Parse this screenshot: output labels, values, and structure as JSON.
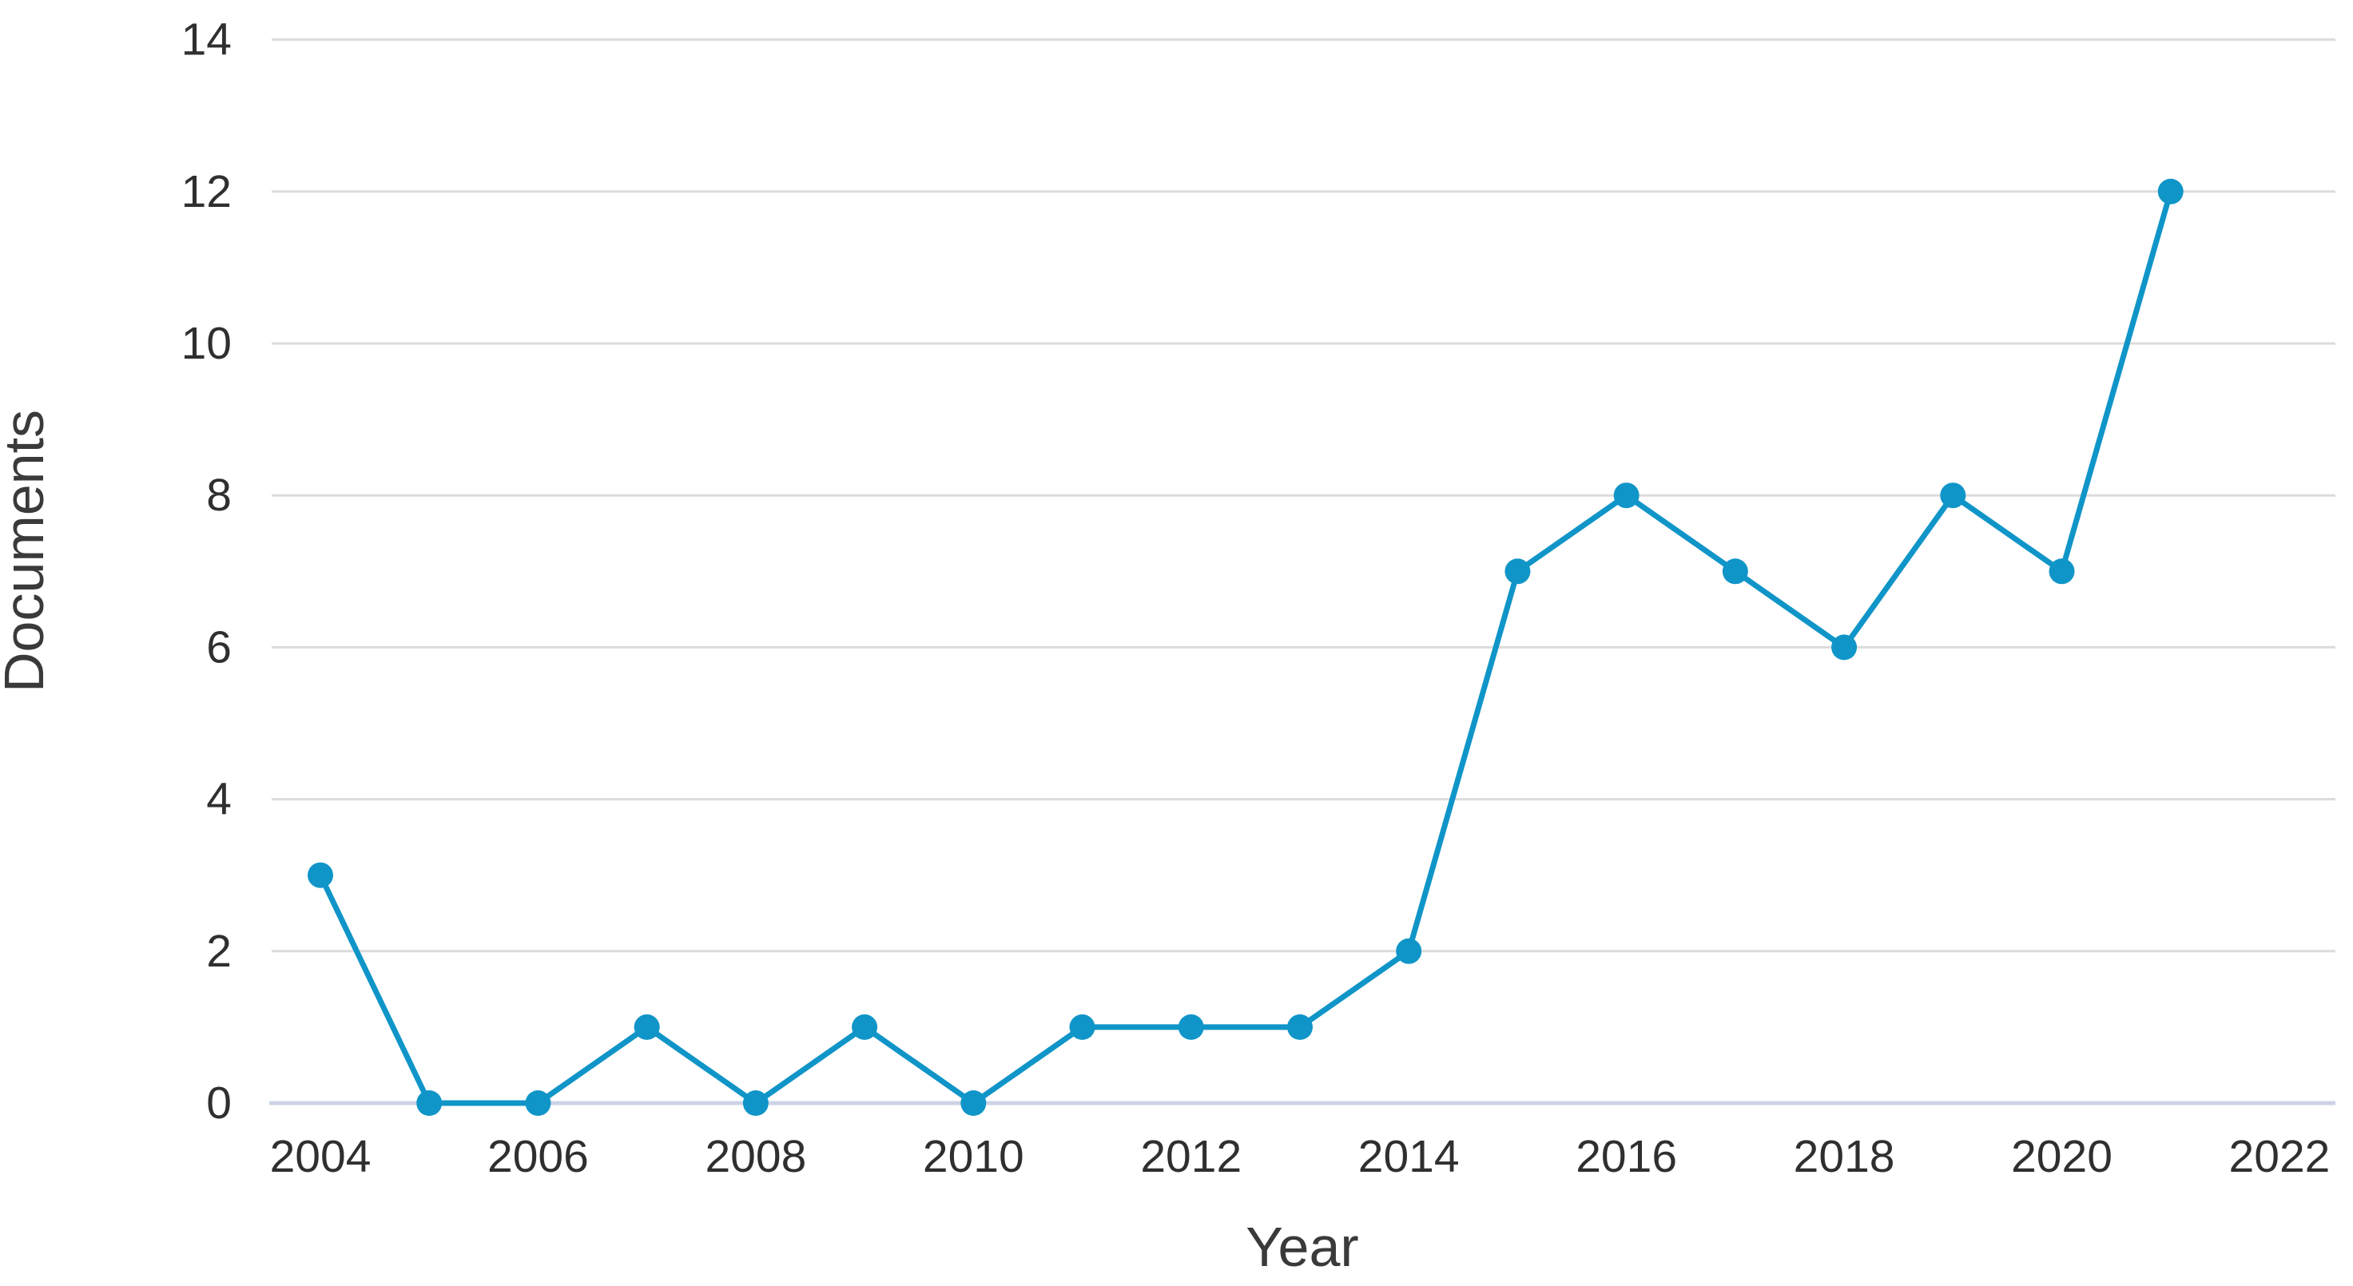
{
  "chart": {
    "xlabel": "Year",
    "ylabel": "Documents"
  },
  "chart_data": {
    "type": "line",
    "title": "",
    "xlabel": "Year",
    "ylabel": "Documents",
    "x": [
      2004,
      2005,
      2006,
      2007,
      2008,
      2009,
      2010,
      2011,
      2012,
      2013,
      2014,
      2015,
      2016,
      2017,
      2018,
      2019,
      2020,
      2021
    ],
    "series": [
      {
        "name": "Documents",
        "values": [
          3,
          0,
          0,
          1,
          0,
          1,
          0,
          1,
          1,
          1,
          2,
          7,
          8,
          7,
          6,
          8,
          7,
          12
        ]
      }
    ],
    "xticks": [
      2004,
      2006,
      2008,
      2010,
      2012,
      2014,
      2016,
      2018,
      2020,
      2022
    ],
    "yticks": [
      0,
      2,
      4,
      6,
      8,
      10,
      12,
      14
    ],
    "xlim": [
      2003.5,
      2022.55
    ],
    "ylim": [
      0,
      14
    ],
    "grid": true,
    "legend": false,
    "marker": "circle",
    "colors": {
      "line": "#1095c8",
      "marker": "#1095c8",
      "gridline": "#dcdcdc",
      "axis_line": "#ccd3e6",
      "tick_text": "#2f2f2f",
      "axis_label_text": "#3a3a3a",
      "background": "#ffffff"
    }
  }
}
